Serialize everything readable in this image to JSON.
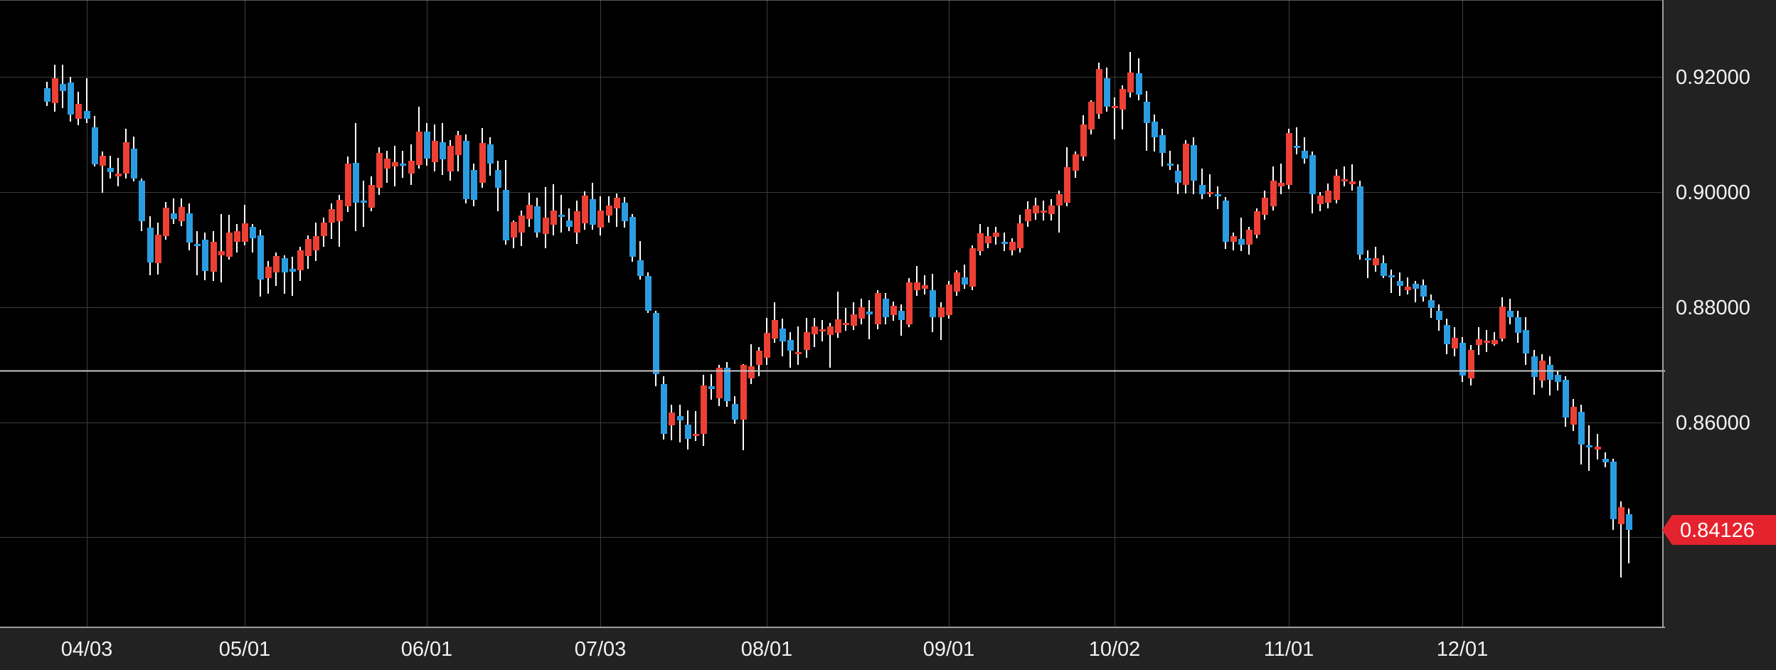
{
  "chart_data": {
    "type": "candlestick",
    "title": "",
    "y_axis": {
      "tick_prices": [
        0.92,
        0.9,
        0.88,
        0.86
      ],
      "tick_labels": [
        "0.92000",
        "0.90000",
        "0.88000",
        "0.86000"
      ],
      "hidden_tick_price": 0.84,
      "ylim": [
        0.82446,
        0.93339
      ]
    },
    "x_axis": {
      "tick_indices": [
        5,
        25,
        48,
        70,
        91,
        114,
        135,
        157,
        179
      ],
      "tick_labels": [
        "04/03",
        "05/01",
        "06/01",
        "07/03",
        "08/01",
        "09/01",
        "10/02",
        "11/01",
        "12/01"
      ]
    },
    "reference_line_price": 0.869,
    "last_price_label": "0.84126",
    "last_price_value": 0.84126,
    "colors": {
      "background": "#000000",
      "axis_background": "#222222",
      "grid": "#3d3d3d",
      "up_candle": "#ec4034",
      "down_candle": "#2b9ce0",
      "wick": "#ffffff",
      "axis_text": "#f2f2f2",
      "border": "#9e9e9e",
      "reference_line": "#c8c8c8",
      "price_tag": "#e5232e",
      "price_tag_text": "#ffffff"
    },
    "candles_ohlc": [
      [
        0.918,
        0.9192,
        0.915,
        0.9157
      ],
      [
        0.9155,
        0.9221,
        0.914,
        0.9198
      ],
      [
        0.9188,
        0.9222,
        0.9146,
        0.9176
      ],
      [
        0.919,
        0.92,
        0.9122,
        0.9135
      ],
      [
        0.9128,
        0.9174,
        0.9116,
        0.9153
      ],
      [
        0.9141,
        0.9198,
        0.912,
        0.9128
      ],
      [
        0.9112,
        0.9132,
        0.9044,
        0.9048
      ],
      [
        0.9046,
        0.907,
        0.8999,
        0.9063
      ],
      [
        0.9042,
        0.9063,
        0.9023,
        0.9035
      ],
      [
        0.9027,
        0.906,
        0.901,
        0.9032
      ],
      [
        0.9032,
        0.911,
        0.9024,
        0.9086
      ],
      [
        0.9076,
        0.9097,
        0.9019,
        0.9023
      ],
      [
        0.902,
        0.9023,
        0.8932,
        0.8949
      ],
      [
        0.8938,
        0.8958,
        0.8855,
        0.8878
      ],
      [
        0.8876,
        0.8947,
        0.8857,
        0.8926
      ],
      [
        0.8923,
        0.8983,
        0.8917,
        0.8973
      ],
      [
        0.8963,
        0.8989,
        0.8944,
        0.8953
      ],
      [
        0.8949,
        0.8989,
        0.8941,
        0.8974
      ],
      [
        0.8963,
        0.898,
        0.8899,
        0.8912
      ],
      [
        0.891,
        0.8932,
        0.8855,
        0.8908
      ],
      [
        0.8917,
        0.893,
        0.8847,
        0.8863
      ],
      [
        0.8861,
        0.8932,
        0.8845,
        0.8913
      ],
      [
        0.889,
        0.8962,
        0.8843,
        0.8898
      ],
      [
        0.8888,
        0.896,
        0.8882,
        0.893
      ],
      [
        0.8913,
        0.8945,
        0.8895,
        0.8932
      ],
      [
        0.8913,
        0.8978,
        0.8907,
        0.8946
      ],
      [
        0.894,
        0.8945,
        0.8895,
        0.892
      ],
      [
        0.8925,
        0.8935,
        0.8818,
        0.8848
      ],
      [
        0.885,
        0.888,
        0.8823,
        0.887
      ],
      [
        0.886,
        0.8895,
        0.8837,
        0.8889
      ],
      [
        0.8885,
        0.889,
        0.8823,
        0.886
      ],
      [
        0.8866,
        0.8888,
        0.8819,
        0.8861
      ],
      [
        0.8864,
        0.8905,
        0.8845,
        0.8899
      ],
      [
        0.8889,
        0.8925,
        0.8866,
        0.8918
      ],
      [
        0.8899,
        0.8947,
        0.888,
        0.8924
      ],
      [
        0.8924,
        0.8955,
        0.8905,
        0.8947
      ],
      [
        0.8947,
        0.898,
        0.8918,
        0.8971
      ],
      [
        0.8949,
        0.8995,
        0.8905,
        0.8986
      ],
      [
        0.8975,
        0.9062,
        0.8965,
        0.9049
      ],
      [
        0.9051,
        0.912,
        0.8932,
        0.8982
      ],
      [
        0.8985,
        0.902,
        0.894,
        0.8983
      ],
      [
        0.8973,
        0.9027,
        0.8967,
        0.9013
      ],
      [
        0.9008,
        0.9078,
        0.8995,
        0.9068
      ],
      [
        0.9041,
        0.9072,
        0.9016,
        0.9058
      ],
      [
        0.9045,
        0.908,
        0.901,
        0.9052
      ],
      [
        0.905,
        0.9072,
        0.9025,
        0.9048
      ],
      [
        0.9032,
        0.9083,
        0.9013,
        0.9054
      ],
      [
        0.9047,
        0.9148,
        0.9041,
        0.9105
      ],
      [
        0.9105,
        0.912,
        0.9046,
        0.9058
      ],
      [
        0.9052,
        0.9118,
        0.9036,
        0.9089
      ],
      [
        0.9086,
        0.912,
        0.903,
        0.9057
      ],
      [
        0.9036,
        0.909,
        0.902,
        0.908
      ],
      [
        0.9064,
        0.9107,
        0.9036,
        0.9099
      ],
      [
        0.9089,
        0.91,
        0.898,
        0.8988
      ],
      [
        0.9039,
        0.905,
        0.8975,
        0.8986
      ],
      [
        0.9016,
        0.9111,
        0.9008,
        0.9085
      ],
      [
        0.9083,
        0.9095,
        0.9028,
        0.905
      ],
      [
        0.9039,
        0.9055,
        0.8967,
        0.9008
      ],
      [
        0.9004,
        0.9056,
        0.8908,
        0.8916
      ],
      [
        0.8921,
        0.895,
        0.8902,
        0.8948
      ],
      [
        0.893,
        0.8968,
        0.8906,
        0.8959
      ],
      [
        0.8953,
        0.8999,
        0.894,
        0.8978
      ],
      [
        0.8975,
        0.899,
        0.8921,
        0.8929
      ],
      [
        0.8927,
        0.9009,
        0.8902,
        0.8956
      ],
      [
        0.8943,
        0.9014,
        0.8925,
        0.8968
      ],
      [
        0.896,
        0.8995,
        0.893,
        0.8957
      ],
      [
        0.895,
        0.8972,
        0.8932,
        0.8939
      ],
      [
        0.893,
        0.8985,
        0.891,
        0.8967
      ],
      [
        0.8946,
        0.9001,
        0.8935,
        0.8994
      ],
      [
        0.8988,
        0.9016,
        0.8934,
        0.8943
      ],
      [
        0.8938,
        0.8993,
        0.8925,
        0.8968
      ],
      [
        0.8959,
        0.8993,
        0.8947,
        0.8976
      ],
      [
        0.8972,
        0.8997,
        0.894,
        0.899
      ],
      [
        0.8981,
        0.8992,
        0.8938,
        0.8949
      ],
      [
        0.8957,
        0.8962,
        0.8879,
        0.8887
      ],
      [
        0.8881,
        0.8915,
        0.8848,
        0.8854
      ],
      [
        0.8854,
        0.886,
        0.879,
        0.8794
      ],
      [
        0.879,
        0.8794,
        0.8662,
        0.8683
      ],
      [
        0.8666,
        0.868,
        0.857,
        0.858
      ],
      [
        0.8594,
        0.863,
        0.8568,
        0.8617
      ],
      [
        0.861,
        0.863,
        0.8565,
        0.8603
      ],
      [
        0.8596,
        0.862,
        0.8553,
        0.8571
      ],
      [
        0.8576,
        0.8619,
        0.8567,
        0.858
      ],
      [
        0.858,
        0.8682,
        0.8559,
        0.8664
      ],
      [
        0.8662,
        0.8684,
        0.8639,
        0.8658
      ],
      [
        0.8642,
        0.87,
        0.8628,
        0.8695
      ],
      [
        0.8695,
        0.8705,
        0.8627,
        0.8636
      ],
      [
        0.8631,
        0.8645,
        0.8597,
        0.8605
      ],
      [
        0.8605,
        0.8701,
        0.8551,
        0.8699
      ],
      [
        0.8676,
        0.8736,
        0.8666,
        0.8697
      ],
      [
        0.8699,
        0.873,
        0.868,
        0.8724
      ],
      [
        0.8712,
        0.8781,
        0.87,
        0.8755
      ],
      [
        0.8745,
        0.8808,
        0.8738,
        0.8778
      ],
      [
        0.8763,
        0.878,
        0.8714,
        0.8741
      ],
      [
        0.8743,
        0.8756,
        0.8695,
        0.8724
      ],
      [
        0.872,
        0.8766,
        0.8699,
        0.8722
      ],
      [
        0.8726,
        0.8781,
        0.8712,
        0.8756
      ],
      [
        0.8753,
        0.8781,
        0.8731,
        0.8766
      ],
      [
        0.8758,
        0.8778,
        0.874,
        0.8761
      ],
      [
        0.8752,
        0.8772,
        0.8695,
        0.8766
      ],
      [
        0.8755,
        0.8827,
        0.8746,
        0.8779
      ],
      [
        0.877,
        0.8799,
        0.8759,
        0.8772
      ],
      [
        0.8768,
        0.8809,
        0.876,
        0.8787
      ],
      [
        0.878,
        0.8815,
        0.877,
        0.88
      ],
      [
        0.8792,
        0.8812,
        0.8744,
        0.8788
      ],
      [
        0.877,
        0.883,
        0.8762,
        0.8825
      ],
      [
        0.8815,
        0.8825,
        0.877,
        0.8782
      ],
      [
        0.8786,
        0.881,
        0.8776,
        0.8802
      ],
      [
        0.8794,
        0.8805,
        0.875,
        0.8778
      ],
      [
        0.877,
        0.885,
        0.8765,
        0.8843
      ],
      [
        0.8829,
        0.8872,
        0.8819,
        0.8843
      ],
      [
        0.8832,
        0.8855,
        0.8822,
        0.8838
      ],
      [
        0.883,
        0.8858,
        0.8757,
        0.8782
      ],
      [
        0.8782,
        0.8808,
        0.8743,
        0.88
      ],
      [
        0.8786,
        0.8845,
        0.878,
        0.8839
      ],
      [
        0.8827,
        0.8864,
        0.882,
        0.886
      ],
      [
        0.8852,
        0.8874,
        0.8832,
        0.8839
      ],
      [
        0.8835,
        0.8907,
        0.883,
        0.8903
      ],
      [
        0.8897,
        0.8944,
        0.889,
        0.8928
      ],
      [
        0.8911,
        0.894,
        0.8902,
        0.8924
      ],
      [
        0.8922,
        0.894,
        0.8908,
        0.893
      ],
      [
        0.8914,
        0.893,
        0.8898,
        0.8911
      ],
      [
        0.8899,
        0.892,
        0.889,
        0.8914
      ],
      [
        0.8902,
        0.896,
        0.8895,
        0.8946
      ],
      [
        0.8949,
        0.8984,
        0.894,
        0.8971
      ],
      [
        0.8963,
        0.899,
        0.8952,
        0.8977
      ],
      [
        0.8965,
        0.8985,
        0.895,
        0.8968
      ],
      [
        0.8962,
        0.8988,
        0.895,
        0.8976
      ],
      [
        0.8977,
        0.9002,
        0.893,
        0.8996
      ],
      [
        0.8981,
        0.9078,
        0.8975,
        0.9043
      ],
      [
        0.9037,
        0.907,
        0.9025,
        0.9066
      ],
      [
        0.9062,
        0.9134,
        0.9055,
        0.9118
      ],
      [
        0.9109,
        0.916,
        0.91,
        0.9157
      ],
      [
        0.9136,
        0.9225,
        0.9128,
        0.9214
      ],
      [
        0.9198,
        0.9217,
        0.914,
        0.9148
      ],
      [
        0.9146,
        0.9165,
        0.9091,
        0.915
      ],
      [
        0.9144,
        0.9185,
        0.9109,
        0.9179
      ],
      [
        0.9173,
        0.9244,
        0.9165,
        0.9208
      ],
      [
        0.9206,
        0.9233,
        0.916,
        0.9169
      ],
      [
        0.9157,
        0.9176,
        0.9072,
        0.912
      ],
      [
        0.9122,
        0.9135,
        0.9071,
        0.9095
      ],
      [
        0.9099,
        0.911,
        0.9045,
        0.9068
      ],
      [
        0.905,
        0.9072,
        0.9038,
        0.9047
      ],
      [
        0.9037,
        0.9048,
        0.8996,
        0.9016
      ],
      [
        0.9012,
        0.909,
        0.8998,
        0.9084
      ],
      [
        0.9082,
        0.9095,
        0.8996,
        0.902
      ],
      [
        0.9012,
        0.9041,
        0.8988,
        0.8996
      ],
      [
        0.8998,
        0.9031,
        0.8992,
        0.9
      ],
      [
        0.8996,
        0.901,
        0.8971,
        0.8994
      ],
      [
        0.8985,
        0.8992,
        0.8901,
        0.8913
      ],
      [
        0.8913,
        0.893,
        0.8899,
        0.8924
      ],
      [
        0.8918,
        0.8955,
        0.8897,
        0.8909
      ],
      [
        0.8909,
        0.894,
        0.8891,
        0.8934
      ],
      [
        0.8926,
        0.8972,
        0.892,
        0.8967
      ],
      [
        0.8961,
        0.9002,
        0.8952,
        0.899
      ],
      [
        0.8975,
        0.9045,
        0.8968,
        0.902
      ],
      [
        0.901,
        0.9049,
        0.8996,
        0.9016
      ],
      [
        0.9012,
        0.911,
        0.9005,
        0.9103
      ],
      [
        0.908,
        0.9113,
        0.9066,
        0.9078
      ],
      [
        0.9072,
        0.9095,
        0.905,
        0.9058
      ],
      [
        0.9064,
        0.907,
        0.8963,
        0.8996
      ],
      [
        0.8979,
        0.9,
        0.8967,
        0.8994
      ],
      [
        0.8981,
        0.9015,
        0.8972,
        0.9002
      ],
      [
        0.8987,
        0.904,
        0.898,
        0.9028
      ],
      [
        0.902,
        0.9045,
        0.901,
        0.9022
      ],
      [
        0.9014,
        0.9048,
        0.9002,
        0.9018
      ],
      [
        0.901,
        0.902,
        0.8883,
        0.8891
      ],
      [
        0.8885,
        0.8899,
        0.885,
        0.8881
      ],
      [
        0.8873,
        0.8905,
        0.8862,
        0.8885
      ],
      [
        0.8877,
        0.889,
        0.8851,
        0.8854
      ],
      [
        0.8855,
        0.8865,
        0.8824,
        0.8852
      ],
      [
        0.8845,
        0.886,
        0.882,
        0.8837
      ],
      [
        0.883,
        0.8852,
        0.8822,
        0.8836
      ],
      [
        0.884,
        0.8846,
        0.8808,
        0.8832
      ],
      [
        0.8838,
        0.8848,
        0.881,
        0.8818
      ],
      [
        0.8812,
        0.8822,
        0.8781,
        0.8798
      ],
      [
        0.8794,
        0.8805,
        0.8759,
        0.8778
      ],
      [
        0.8769,
        0.878,
        0.8718,
        0.8736
      ],
      [
        0.8728,
        0.8765,
        0.8714,
        0.8747
      ],
      [
        0.8738,
        0.8748,
        0.867,
        0.8681
      ],
      [
        0.8676,
        0.8734,
        0.8664,
        0.8726
      ],
      [
        0.8734,
        0.8765,
        0.8717,
        0.8744
      ],
      [
        0.8738,
        0.876,
        0.8722,
        0.8742
      ],
      [
        0.8736,
        0.8757,
        0.8733,
        0.8743
      ],
      [
        0.8745,
        0.8817,
        0.874,
        0.8801
      ],
      [
        0.8794,
        0.8815,
        0.877,
        0.8782
      ],
      [
        0.8782,
        0.8793,
        0.8738,
        0.8755
      ],
      [
        0.876,
        0.8782,
        0.8699,
        0.872
      ],
      [
        0.8715,
        0.8725,
        0.8648,
        0.8678
      ],
      [
        0.8672,
        0.8718,
        0.866,
        0.8707
      ],
      [
        0.87,
        0.8714,
        0.8646,
        0.8674
      ],
      [
        0.8682,
        0.869,
        0.8655,
        0.867
      ],
      [
        0.8674,
        0.868,
        0.8592,
        0.8608
      ],
      [
        0.8596,
        0.864,
        0.8585,
        0.8627
      ],
      [
        0.8618,
        0.863,
        0.8526,
        0.8561
      ],
      [
        0.856,
        0.8594,
        0.8515,
        0.8556
      ],
      [
        0.8553,
        0.858,
        0.8535,
        0.8558
      ],
      [
        0.8536,
        0.8548,
        0.8521,
        0.853
      ],
      [
        0.8531,
        0.8537,
        0.8413,
        0.8431
      ],
      [
        0.8423,
        0.8462,
        0.833,
        0.8452
      ],
      [
        0.844,
        0.845,
        0.8355,
        0.84126
      ]
    ]
  }
}
